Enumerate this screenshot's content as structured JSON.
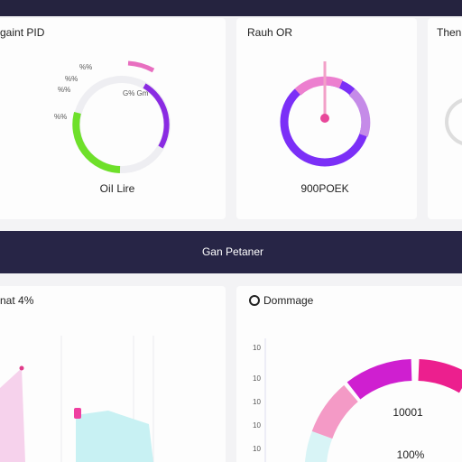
{
  "cards": [
    {
      "title": "gaint PID",
      "label": "OiI Lire",
      "ticks": [
        "%%",
        "%%",
        "%%",
        "%%"
      ],
      "note": "G% Gm"
    },
    {
      "title": "Rauh OR",
      "label": "900POEK"
    },
    {
      "title": "Then"
    }
  ],
  "banner": {
    "title": "Gan Petaner"
  },
  "bottom": [
    {
      "title": "nat 4%"
    },
    {
      "title": "Dommage",
      "axis": [
        "10",
        "10",
        "10",
        "10",
        "10"
      ],
      "value": "10001",
      "percent": "100%"
    }
  ]
}
